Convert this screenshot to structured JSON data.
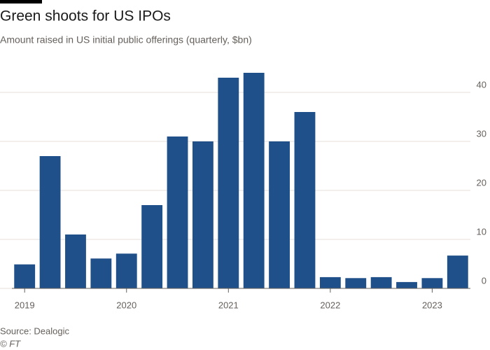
{
  "chart_data": {
    "type": "bar",
    "title": "Green shoots for US IPOs",
    "subtitle": "Amount raised in US initial public offerings (quarterly, $bn)",
    "source": "Source: Dealogic",
    "credit": "© FT",
    "categories": [
      "2019",
      null,
      null,
      null,
      "2020",
      null,
      null,
      null,
      "2021",
      null,
      null,
      null,
      "2022",
      null,
      null,
      null,
      "2023",
      null
    ],
    "values": [
      4.9,
      27,
      11,
      6.1,
      7.1,
      17,
      31,
      30,
      43,
      44,
      30,
      36,
      2.3,
      2.1,
      2.3,
      1.3,
      2.1,
      6.7
    ],
    "color": "#1f5089",
    "ylim": [
      0,
      45
    ],
    "yticks": [
      0,
      10,
      20,
      30,
      40
    ],
    "grid": true
  }
}
